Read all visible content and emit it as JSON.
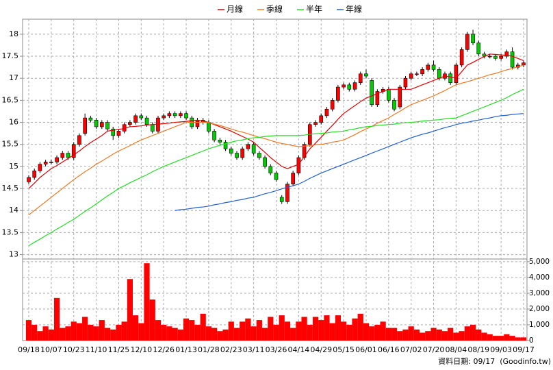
{
  "chart_data": [
    {
      "type": "candlestick",
      "legend": "top",
      "grid": true,
      "up_color": "#ff0000",
      "down_color": "#00cc00",
      "categories": [
        "09/18",
        null,
        null,
        null,
        "10/07",
        null,
        null,
        null,
        "10/23",
        null,
        null,
        null,
        "11/10",
        null,
        null,
        null,
        "11/25",
        null,
        null,
        null,
        "12/10",
        null,
        null,
        null,
        "12/26",
        null,
        null,
        null,
        "01/13",
        null,
        null,
        null,
        "01/28",
        null,
        null,
        null,
        "02/23",
        null,
        null,
        null,
        "03/11",
        null,
        null,
        null,
        "03/26",
        null,
        null,
        null,
        "04/14",
        null,
        null,
        null,
        "04/29",
        null,
        null,
        null,
        "05/15",
        null,
        null,
        null,
        "06/01",
        null,
        null,
        null,
        "06/16",
        null,
        null,
        null,
        "07/02",
        null,
        null,
        null,
        "07/20",
        null,
        null,
        null,
        "08/04",
        null,
        null,
        null,
        "08/19",
        null,
        null,
        null,
        "09/03",
        null,
        null,
        null,
        "09/17"
      ],
      "open": [
        14.65,
        14.75,
        14.9,
        15.05,
        15.1,
        15.1,
        15.2,
        15.3,
        15.2,
        15.5,
        15.75,
        16.1,
        16.05,
        15.9,
        16.0,
        15.85,
        15.7,
        15.8,
        15.95,
        16.0,
        16.15,
        16.1,
        15.95,
        15.8,
        16.1,
        16.15,
        16.2,
        16.15,
        16.2,
        16.1,
        15.9,
        16.05,
        16.0,
        15.8,
        15.6,
        15.55,
        15.4,
        15.3,
        15.2,
        15.4,
        15.5,
        15.3,
        15.2,
        15.0,
        14.85,
        14.3,
        14.2,
        14.6,
        14.85,
        15.2,
        15.5,
        15.95,
        16.0,
        16.15,
        16.3,
        16.5,
        16.8,
        16.85,
        16.75,
        16.9,
        17.1,
        16.95,
        16.4,
        16.7,
        16.75,
        16.5,
        16.35,
        16.8,
        17.0,
        17.1,
        17.1,
        17.2,
        17.3,
        17.2,
        17.0,
        17.1,
        16.9,
        17.3,
        17.65,
        18.0,
        17.8,
        17.55,
        17.5,
        17.5,
        17.45,
        17.5,
        17.6,
        17.25,
        17.3
      ],
      "high": [
        14.8,
        14.95,
        15.1,
        15.15,
        15.15,
        15.25,
        15.35,
        15.35,
        15.55,
        15.75,
        16.2,
        16.15,
        16.1,
        16.05,
        16.05,
        15.9,
        15.85,
        16.0,
        16.05,
        16.2,
        16.2,
        16.15,
        16.0,
        16.15,
        16.2,
        16.25,
        16.25,
        16.25,
        16.25,
        16.15,
        16.1,
        16.1,
        16.05,
        15.85,
        15.65,
        15.6,
        15.45,
        15.35,
        15.45,
        15.55,
        15.55,
        15.35,
        15.25,
        15.05,
        14.9,
        14.35,
        14.65,
        14.9,
        15.25,
        15.55,
        16.0,
        16.05,
        16.2,
        16.35,
        16.55,
        16.85,
        16.9,
        16.9,
        16.95,
        17.15,
        17.2,
        17.0,
        16.75,
        16.8,
        16.8,
        16.55,
        16.85,
        17.05,
        17.15,
        17.15,
        17.25,
        17.35,
        17.4,
        17.25,
        17.15,
        17.15,
        17.35,
        17.7,
        18.05,
        18.1,
        17.85,
        17.6,
        17.55,
        17.55,
        17.55,
        17.65,
        17.7,
        17.35,
        17.4
      ],
      "low": [
        14.6,
        14.7,
        14.85,
        15.0,
        15.05,
        15.05,
        15.15,
        15.15,
        15.15,
        15.45,
        15.7,
        16.0,
        15.85,
        15.85,
        15.8,
        15.6,
        15.65,
        15.75,
        15.9,
        15.95,
        16.05,
        15.9,
        15.75,
        15.75,
        16.05,
        16.1,
        16.1,
        16.1,
        16.05,
        15.85,
        15.85,
        15.95,
        15.75,
        15.55,
        15.5,
        15.35,
        15.25,
        15.15,
        15.15,
        15.35,
        15.25,
        15.15,
        14.95,
        14.8,
        14.65,
        14.15,
        14.15,
        14.55,
        14.8,
        15.15,
        15.45,
        15.9,
        15.95,
        16.1,
        16.25,
        16.45,
        16.75,
        16.7,
        16.7,
        16.85,
        17.0,
        16.35,
        16.35,
        16.65,
        16.45,
        16.25,
        16.3,
        16.75,
        16.95,
        17.05,
        17.05,
        17.15,
        17.15,
        16.95,
        16.95,
        16.85,
        16.85,
        17.25,
        17.6,
        17.75,
        17.5,
        17.45,
        17.45,
        17.4,
        17.4,
        17.45,
        17.2,
        17.2,
        17.25
      ],
      "close": [
        14.75,
        14.9,
        15.05,
        15.1,
        15.1,
        15.2,
        15.3,
        15.2,
        15.5,
        15.7,
        16.1,
        16.05,
        15.9,
        16.0,
        15.85,
        15.7,
        15.8,
        15.95,
        16.0,
        16.15,
        16.1,
        15.95,
        15.8,
        16.1,
        16.15,
        16.2,
        16.15,
        16.2,
        16.1,
        15.9,
        16.05,
        16.0,
        15.8,
        15.6,
        15.55,
        15.4,
        15.3,
        15.2,
        15.4,
        15.5,
        15.3,
        15.2,
        15.0,
        14.85,
        14.7,
        14.2,
        14.6,
        14.85,
        15.2,
        15.5,
        15.95,
        16.0,
        16.15,
        16.3,
        16.5,
        16.8,
        16.85,
        16.75,
        16.9,
        17.1,
        17.05,
        16.4,
        16.7,
        16.75,
        16.5,
        16.3,
        16.8,
        17.0,
        17.1,
        17.1,
        17.2,
        17.3,
        17.2,
        17.0,
        17.1,
        16.9,
        17.3,
        17.65,
        18.0,
        17.8,
        17.55,
        17.5,
        17.5,
        17.45,
        17.5,
        17.6,
        17.25,
        17.3,
        17.35
      ],
      "series": [
        {
          "name": "月線",
          "color": "#e00000",
          "values": [
            14.5,
            14.62,
            14.75,
            14.85,
            14.95,
            15.02,
            15.1,
            15.18,
            15.26,
            15.35,
            15.45,
            15.54,
            15.62,
            15.7,
            15.8,
            15.82,
            15.84,
            15.86,
            15.9,
            15.91,
            15.92,
            15.94,
            15.95,
            15.96,
            15.97,
            15.98,
            16.0,
            16.01,
            16.02,
            16.04,
            16.05,
            16.03,
            16.0,
            15.95,
            15.9,
            15.85,
            15.8,
            15.74,
            15.68,
            15.62,
            15.55,
            15.43,
            15.32,
            15.2,
            15.1,
            15.0,
            14.95,
            15.0,
            15.05,
            15.22,
            15.4,
            15.53,
            15.66,
            15.8,
            15.93,
            16.07,
            16.2,
            16.29,
            16.38,
            16.47,
            16.55,
            16.6,
            16.65,
            16.7,
            16.75,
            16.75,
            16.75,
            16.75,
            16.75,
            16.8,
            16.85,
            16.9,
            16.95,
            17.0,
            17.05,
            17.03,
            17.0,
            17.15,
            17.3,
            17.36,
            17.43,
            17.49,
            17.55,
            17.54,
            17.53,
            17.52,
            17.5,
            17.45,
            17.4
          ]
        },
        {
          "name": "季線",
          "color": "#f07820",
          "values": [
            13.9,
            14.0,
            14.1,
            14.2,
            14.3,
            14.4,
            14.5,
            14.6,
            14.7,
            14.79,
            14.88,
            14.96,
            15.05,
            15.12,
            15.2,
            15.28,
            15.35,
            15.41,
            15.47,
            15.54,
            15.6,
            15.65,
            15.7,
            15.75,
            15.8,
            15.85,
            15.9,
            15.95,
            16.0,
            16.0,
            16.0,
            16.0,
            16.0,
            15.96,
            15.93,
            15.89,
            15.85,
            15.81,
            15.78,
            15.74,
            15.7,
            15.66,
            15.63,
            15.59,
            15.55,
            15.52,
            15.5,
            15.47,
            15.45,
            15.46,
            15.47,
            15.49,
            15.5,
            15.52,
            15.55,
            15.57,
            15.6,
            15.66,
            15.72,
            15.79,
            15.85,
            15.91,
            15.98,
            16.04,
            16.1,
            16.18,
            16.25,
            16.33,
            16.4,
            16.45,
            16.5,
            16.55,
            16.6,
            16.66,
            16.72,
            16.79,
            16.85,
            16.89,
            16.92,
            16.96,
            17.0,
            17.04,
            17.08,
            17.11,
            17.15,
            17.19,
            17.22,
            17.26,
            17.3
          ]
        },
        {
          "name": "半年",
          "color": "#22dd22",
          "values": [
            13.2,
            13.28,
            13.35,
            13.43,
            13.5,
            13.58,
            13.65,
            13.73,
            13.8,
            13.89,
            13.98,
            14.06,
            14.15,
            14.24,
            14.33,
            14.41,
            14.5,
            14.56,
            14.63,
            14.69,
            14.75,
            14.81,
            14.88,
            14.94,
            15.0,
            15.05,
            15.1,
            15.15,
            15.2,
            15.25,
            15.3,
            15.35,
            15.4,
            15.44,
            15.48,
            15.51,
            15.55,
            15.58,
            15.6,
            15.63,
            15.65,
            15.66,
            15.68,
            15.69,
            15.7,
            15.7,
            15.7,
            15.7,
            15.7,
            15.71,
            15.73,
            15.74,
            15.75,
            15.76,
            15.78,
            15.79,
            15.8,
            15.83,
            15.85,
            15.88,
            15.9,
            15.91,
            15.93,
            15.94,
            15.95,
            15.96,
            15.98,
            15.99,
            16.0,
            16.01,
            16.03,
            16.04,
            16.05,
            16.06,
            16.08,
            16.09,
            16.1,
            16.15,
            16.2,
            16.25,
            16.3,
            16.35,
            16.4,
            16.45,
            16.5,
            16.56,
            16.63,
            16.69,
            16.75
          ]
        },
        {
          "name": "年線",
          "color": "#1f5fd0",
          "values": [
            null,
            null,
            null,
            null,
            null,
            null,
            null,
            null,
            null,
            null,
            null,
            null,
            null,
            null,
            null,
            null,
            null,
            null,
            null,
            null,
            null,
            null,
            null,
            null,
            null,
            null,
            14.0,
            14.02,
            14.03,
            14.05,
            14.07,
            14.08,
            14.1,
            14.13,
            14.15,
            14.18,
            14.2,
            14.23,
            14.25,
            14.28,
            14.3,
            14.34,
            14.38,
            14.41,
            14.45,
            14.49,
            14.53,
            14.56,
            14.6,
            14.66,
            14.73,
            14.79,
            14.85,
            14.9,
            14.95,
            15.0,
            15.05,
            15.1,
            15.15,
            15.2,
            15.25,
            15.3,
            15.35,
            15.4,
            15.45,
            15.5,
            15.55,
            15.6,
            15.65,
            15.69,
            15.73,
            15.76,
            15.8,
            15.84,
            15.88,
            15.91,
            15.95,
            15.98,
            16.0,
            16.03,
            16.05,
            16.08,
            16.1,
            16.13,
            16.15,
            16.16,
            16.18,
            16.19,
            16.2
          ]
        }
      ],
      "ylim": [
        12.9,
        18.34
      ],
      "yticks": [
        13,
        13.5,
        14,
        14.5,
        15,
        15.5,
        16,
        16.5,
        17,
        17.5,
        18
      ]
    },
    {
      "type": "bar",
      "color": "#ff0000",
      "grid": true,
      "values": [
        1300,
        1000,
        600,
        900,
        700,
        2700,
        800,
        900,
        1200,
        1100,
        1500,
        1000,
        900,
        1300,
        800,
        700,
        1000,
        1200,
        3900,
        1600,
        1100,
        4900,
        2600,
        1300,
        1000,
        900,
        800,
        700,
        1400,
        1300,
        1000,
        1700,
        900,
        800,
        600,
        700,
        1200,
        800,
        1200,
        1400,
        900,
        1300,
        800,
        1500,
        1000,
        1600,
        1200,
        800,
        1200,
        1500,
        1000,
        1500,
        1300,
        1600,
        1100,
        1600,
        1200,
        1000,
        1400,
        1700,
        1100,
        900,
        1000,
        1200,
        800,
        800,
        600,
        700,
        900,
        700,
        500,
        600,
        800,
        700,
        600,
        800,
        500,
        600,
        900,
        1000,
        700,
        500,
        400,
        300,
        300,
        400,
        300,
        200,
        200
      ],
      "ylim": [
        0,
        5170
      ],
      "yticks": [
        0,
        {
          "value": 1000,
          "label": "1,000"
        },
        {
          "value": 2000,
          "label": "2,000"
        },
        {
          "value": 3000,
          "label": "3,000"
        },
        {
          "value": 4000,
          "label": "4,000"
        },
        {
          "value": 5000,
          "label": "5,000"
        }
      ]
    }
  ],
  "footer": "資料日期: 09/17  (Goodinfo.tw)"
}
